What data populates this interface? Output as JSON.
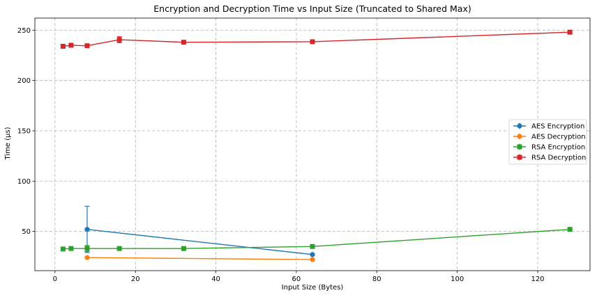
{
  "chart_data": {
    "type": "line",
    "title": "Encryption and Decryption Time vs Input Size (Truncated to Shared Max)",
    "xlabel": "Input Size (Bytes)",
    "ylabel": "Time (µs)",
    "xlim": [
      -5,
      133
    ],
    "ylim": [
      11,
      262
    ],
    "xticks": [
      0,
      20,
      40,
      60,
      80,
      100,
      120
    ],
    "yticks": [
      50,
      100,
      150,
      200,
      250
    ],
    "grid": true,
    "legend_position": "center-right",
    "series": [
      {
        "name": "AES Encryption",
        "color": "#1f77b4",
        "marker": "circle",
        "x": [
          8,
          64
        ],
        "y": [
          52,
          27
        ],
        "err": [
          23,
          0
        ]
      },
      {
        "name": "AES Decryption",
        "color": "#ff7f0e",
        "marker": "circle",
        "x": [
          8,
          64
        ],
        "y": [
          24,
          22
        ],
        "err": [
          0,
          0
        ]
      },
      {
        "name": "RSA Encryption",
        "color": "#2ca02c",
        "marker": "square",
        "x": [
          2,
          4,
          8,
          16,
          32,
          64,
          128
        ],
        "y": [
          32.5,
          33,
          33,
          33,
          33,
          35,
          52
        ],
        "err": [
          0,
          0,
          3,
          0,
          0,
          0,
          1
        ]
      },
      {
        "name": "RSA Decryption",
        "color": "#d62728",
        "marker": "square",
        "x": [
          2,
          4,
          8,
          16,
          32,
          64,
          128
        ],
        "y": [
          234,
          235,
          234.5,
          240.5,
          238,
          238.5,
          248
        ],
        "err": [
          1.5,
          1.5,
          1.5,
          3,
          1.5,
          1.5,
          1.5
        ]
      }
    ]
  }
}
